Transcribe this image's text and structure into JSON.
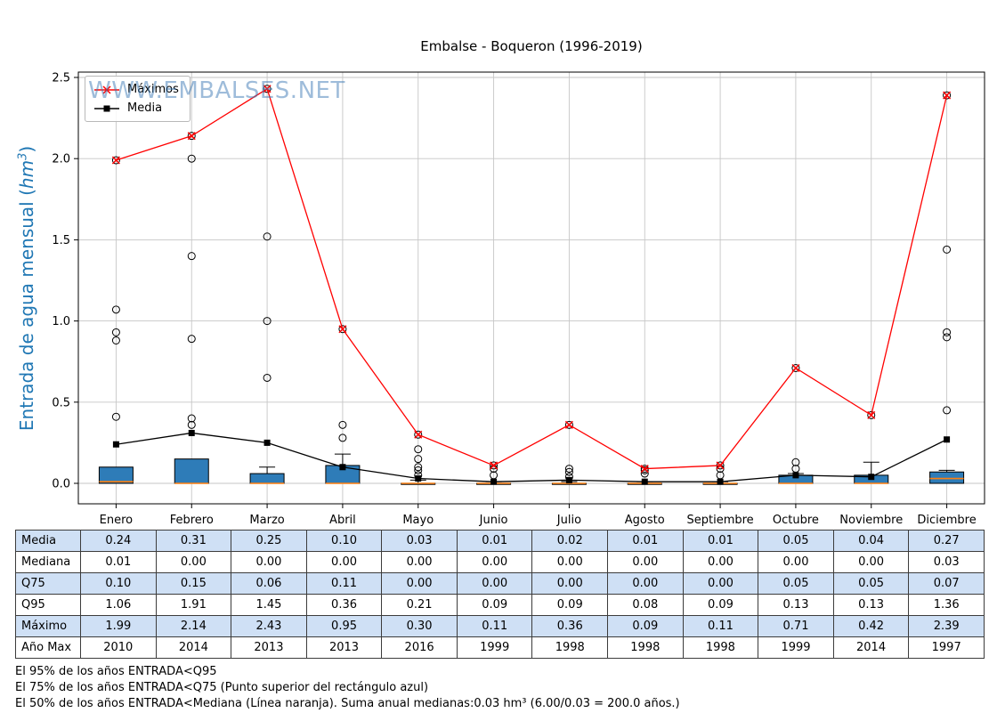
{
  "watermark": "WWW.EMBALSES.NET",
  "legend": {
    "items": [
      {
        "label": "Máximos"
      },
      {
        "label": "Media"
      }
    ]
  },
  "ylabel": {
    "prefix": "Entrada de agua mensual (",
    "unit_base": "hm",
    "unit_exp": "3",
    "suffix": ")"
  },
  "colors": {
    "box_fill": "#2e7cb8",
    "median_line": "#ff7f0e",
    "maximos": "#ff0000",
    "media": "#000000",
    "ylabel": "#1f77b4",
    "table_highlight": "#cfe0f5"
  },
  "footnotes": [
    "El 95% de los años ENTRADA<Q95",
    "El 75% de los años ENTRADA<Q75 (Punto superior del rectángulo azul)",
    "El 50% de los años ENTRADA<Mediana (Línea naranja). Suma anual medianas:0.03 hm³ (6.00/0.03 = 200.0 años.)"
  ],
  "chart_data": {
    "type": "boxplot+line",
    "title": "Embalse - Boqueron (1996-2019)",
    "ylabel": "Entrada de agua mensual (hm³)",
    "ylim": [
      -0.13,
      2.53
    ],
    "grid": true,
    "legend_position": "upper left",
    "y_ticks": [
      "0.0",
      "0.5",
      "1.0",
      "1.5",
      "2.0",
      "2.5"
    ],
    "categories": [
      "Enero",
      "Febrero",
      "Marzo",
      "Abril",
      "Mayo",
      "Junio",
      "Julio",
      "Agosto",
      "Septiembre",
      "Octubre",
      "Noviembre",
      "Diciembre"
    ],
    "series": [
      {
        "name": "Máximos",
        "color": "#ff0000",
        "marker": "x",
        "values": [
          1.99,
          2.14,
          2.43,
          0.95,
          0.3,
          0.11,
          0.36,
          0.09,
          0.11,
          0.71,
          0.42,
          2.39
        ]
      },
      {
        "name": "Media",
        "color": "#000000",
        "marker": "square",
        "values": [
          0.24,
          0.31,
          0.25,
          0.1,
          0.03,
          0.01,
          0.02,
          0.01,
          0.01,
          0.05,
          0.04,
          0.27
        ]
      }
    ],
    "boxplots": [
      {
        "median": 0.01,
        "q75": 0.1,
        "whisker": 0.1,
        "outliers": [
          0.41,
          0.88,
          0.93,
          1.07,
          1.99
        ]
      },
      {
        "median": 0.0,
        "q75": 0.15,
        "whisker": 0.15,
        "outliers": [
          0.36,
          0.4,
          0.89,
          1.4,
          2.0,
          2.14
        ]
      },
      {
        "median": 0.0,
        "q75": 0.06,
        "whisker": 0.1,
        "outliers": [
          0.65,
          1.0,
          1.52,
          2.43
        ]
      },
      {
        "median": 0.0,
        "q75": 0.11,
        "whisker": 0.18,
        "outliers": [
          0.28,
          0.36,
          0.95
        ]
      },
      {
        "median": 0.0,
        "q75": 0.0,
        "whisker": 0.02,
        "outliers": [
          0.05,
          0.08,
          0.1,
          0.15,
          0.21,
          0.3
        ]
      },
      {
        "median": 0.0,
        "q75": 0.0,
        "whisker": 0.01,
        "outliers": [
          0.05,
          0.09,
          0.11
        ]
      },
      {
        "median": 0.0,
        "q75": 0.0,
        "whisker": 0.01,
        "outliers": [
          0.04,
          0.07,
          0.09,
          0.36
        ]
      },
      {
        "median": 0.0,
        "q75": 0.0,
        "whisker": 0.01,
        "outliers": [
          0.06,
          0.08,
          0.09
        ]
      },
      {
        "median": 0.0,
        "q75": 0.0,
        "whisker": 0.01,
        "outliers": [
          0.05,
          0.09,
          0.11
        ]
      },
      {
        "median": 0.0,
        "q75": 0.05,
        "whisker": 0.06,
        "outliers": [
          0.09,
          0.13,
          0.71
        ]
      },
      {
        "median": 0.0,
        "q75": 0.05,
        "whisker": 0.13,
        "outliers": [
          0.42
        ]
      },
      {
        "median": 0.03,
        "q75": 0.07,
        "whisker": 0.08,
        "outliers": [
          0.45,
          0.9,
          0.93,
          1.44,
          2.39
        ]
      }
    ],
    "stats_table": {
      "row_labels": [
        "Media",
        "Mediana",
        "Q75",
        "Q95",
        "Máximo",
        "Año Max"
      ],
      "rows": [
        [
          "0.24",
          "0.31",
          "0.25",
          "0.10",
          "0.03",
          "0.01",
          "0.02",
          "0.01",
          "0.01",
          "0.05",
          "0.04",
          "0.27"
        ],
        [
          "0.01",
          "0.00",
          "0.00",
          "0.00",
          "0.00",
          "0.00",
          "0.00",
          "0.00",
          "0.00",
          "0.00",
          "0.00",
          "0.03"
        ],
        [
          "0.10",
          "0.15",
          "0.06",
          "0.11",
          "0.00",
          "0.00",
          "0.00",
          "0.00",
          "0.00",
          "0.05",
          "0.05",
          "0.07"
        ],
        [
          "1.06",
          "1.91",
          "1.45",
          "0.36",
          "0.21",
          "0.09",
          "0.09",
          "0.08",
          "0.09",
          "0.13",
          "0.13",
          "1.36"
        ],
        [
          "1.99",
          "2.14",
          "2.43",
          "0.95",
          "0.30",
          "0.11",
          "0.36",
          "0.09",
          "0.11",
          "0.71",
          "0.42",
          "2.39"
        ],
        [
          "2010",
          "2014",
          "2013",
          "2013",
          "2016",
          "1999",
          "1998",
          "1998",
          "1998",
          "1999",
          "2014",
          "1997"
        ]
      ]
    }
  }
}
